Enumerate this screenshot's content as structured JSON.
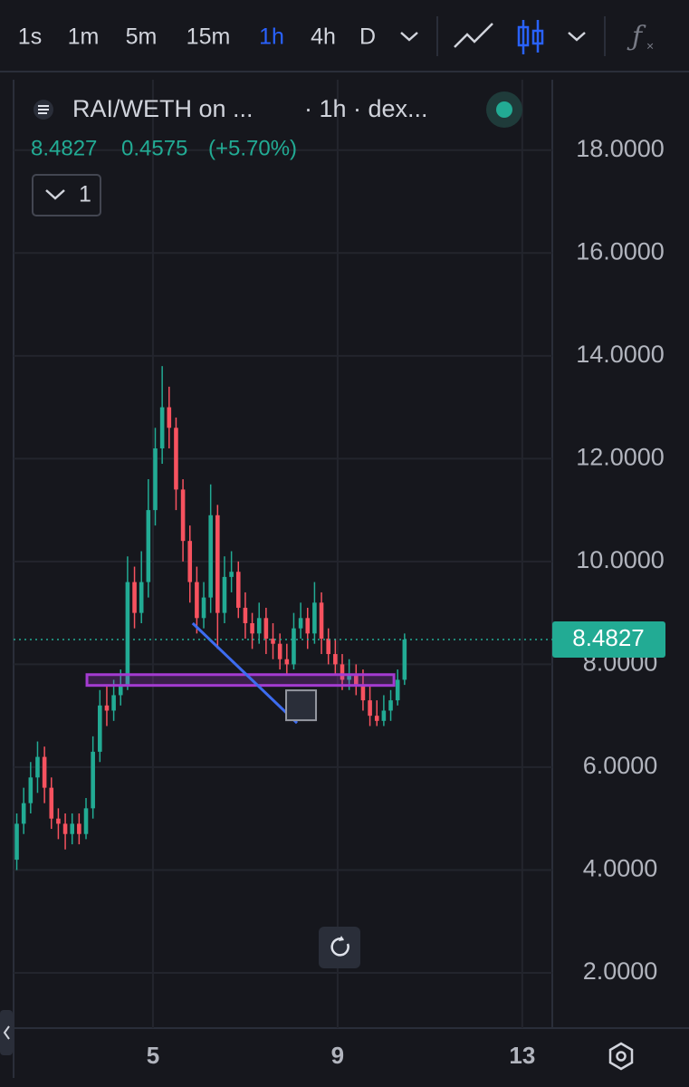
{
  "toolbar": {
    "intervals": [
      "1s",
      "1m",
      "5m",
      "15m",
      "1h",
      "4h",
      "D"
    ],
    "active": "1h"
  },
  "header": {
    "symbol": "RAI/WETH on ...",
    "meta": "· 1h · dex...",
    "last": "8.4827",
    "change": "0.4575",
    "change_percent": "(+5.70%)",
    "indicators_count": "1"
  },
  "chart_data": {
    "type": "candlestick",
    "x": [
      2.05,
      2.2,
      2.35,
      2.5,
      2.65,
      2.8,
      2.95,
      3.1,
      3.25,
      3.4,
      3.55,
      3.7,
      3.85,
      4.0,
      4.15,
      4.3,
      4.45,
      4.6,
      4.75,
      4.9,
      5.05,
      5.2,
      5.35,
      5.5,
      5.65,
      5.8,
      5.95,
      6.1,
      6.25,
      6.4,
      6.55,
      6.7,
      6.85,
      7.0,
      7.15,
      7.3,
      7.45,
      7.6,
      7.75,
      7.9,
      8.05,
      8.2,
      8.35,
      8.5,
      8.65,
      8.8,
      8.95,
      9.1,
      9.25,
      9.4,
      9.55,
      9.7,
      9.85,
      10.0,
      10.15,
      10.3,
      10.45
    ],
    "open": [
      4.2,
      4.9,
      5.3,
      5.8,
      6.2,
      5.6,
      5.0,
      4.9,
      4.7,
      4.9,
      4.7,
      5.2,
      6.3,
      7.2,
      7.1,
      7.4,
      7.6,
      9.6,
      9.0,
      9.6,
      11.0,
      12.2,
      13.0,
      12.6,
      11.4,
      10.4,
      9.6,
      8.9,
      9.3,
      10.9,
      9.0,
      9.7,
      9.8,
      9.1,
      8.8,
      8.6,
      8.9,
      8.5,
      8.4,
      8.1,
      8.0,
      8.7,
      8.9,
      8.6,
      9.2,
      8.5,
      8.2,
      8.0,
      7.7,
      7.8,
      7.6,
      7.3,
      7.0,
      6.9,
      7.1,
      7.3,
      7.7
    ],
    "high": [
      5.1,
      5.6,
      6.1,
      6.5,
      6.4,
      5.8,
      5.2,
      5.1,
      5.1,
      5.1,
      5.4,
      6.6,
      7.5,
      7.6,
      7.7,
      7.9,
      10.1,
      9.9,
      10.2,
      11.6,
      12.6,
      13.8,
      13.4,
      12.8,
      11.6,
      10.7,
      9.9,
      9.6,
      11.5,
      11.1,
      10.1,
      10.2,
      10.0,
      9.4,
      9.0,
      9.2,
      9.1,
      8.8,
      8.6,
      8.4,
      9.0,
      9.2,
      9.1,
      9.6,
      9.4,
      8.7,
      8.5,
      8.2,
      8.1,
      8.0,
      7.9,
      7.6,
      7.3,
      7.4,
      7.5,
      7.9,
      8.6
    ],
    "low": [
      4.0,
      4.7,
      5.1,
      5.5,
      5.3,
      4.8,
      4.6,
      4.4,
      4.5,
      4.5,
      4.6,
      5.0,
      6.1,
      6.8,
      6.9,
      7.2,
      7.5,
      8.7,
      8.8,
      9.3,
      10.7,
      11.9,
      12.2,
      11.0,
      10.0,
      9.2,
      8.6,
      8.7,
      9.0,
      8.3,
      8.8,
      9.4,
      8.9,
      8.5,
      8.3,
      8.4,
      8.2,
      8.1,
      7.9,
      7.8,
      7.9,
      8.5,
      8.3,
      8.4,
      8.2,
      8.0,
      7.8,
      7.5,
      7.5,
      7.4,
      7.1,
      6.8,
      6.8,
      6.8,
      6.9,
      7.2,
      7.6
    ],
    "close": [
      4.9,
      5.3,
      5.8,
      6.2,
      5.6,
      5.0,
      4.9,
      4.7,
      4.9,
      4.7,
      5.2,
      6.3,
      7.2,
      7.1,
      7.4,
      7.6,
      9.6,
      9.0,
      9.6,
      11.0,
      12.2,
      13.0,
      12.6,
      11.4,
      10.4,
      9.6,
      8.9,
      9.3,
      10.9,
      9.0,
      9.7,
      9.8,
      9.1,
      8.8,
      8.6,
      8.9,
      8.5,
      8.4,
      8.1,
      8.0,
      8.7,
      8.9,
      8.6,
      9.2,
      8.5,
      8.2,
      8.0,
      7.7,
      7.8,
      7.6,
      7.3,
      7.0,
      6.9,
      7.1,
      7.3,
      7.7,
      8.4827
    ],
    "up_color": "#22ab94",
    "down_color": "#f7525f",
    "xlim": [
      2.02,
      13.65
    ],
    "xticks": [
      5,
      9,
      13
    ],
    "ylim": [
      0.925,
      19.37
    ],
    "yticks": [
      {
        "value": 2,
        "label": "2.0000"
      },
      {
        "value": 4,
        "label": "4.0000"
      },
      {
        "value": 6,
        "label": "6.0000"
      },
      {
        "value": 8,
        "label": "8.0000"
      },
      {
        "value": 10,
        "label": "10.0000"
      },
      {
        "value": 12,
        "label": "12.0000"
      },
      {
        "value": 14,
        "label": "14.0000"
      },
      {
        "value": 16,
        "label": "16.0000"
      },
      {
        "value": 18,
        "label": "18.0000"
      }
    ],
    "grid": true,
    "trend_line": {
      "x": [
        5.86,
        8.12
      ],
      "y": [
        8.8,
        6.86
      ],
      "color": "#3d6cf0"
    },
    "zone": {
      "x": [
        3.57,
        10.22
      ],
      "y": [
        7.59,
        7.8
      ],
      "color": "#a43bd1"
    }
  }
}
